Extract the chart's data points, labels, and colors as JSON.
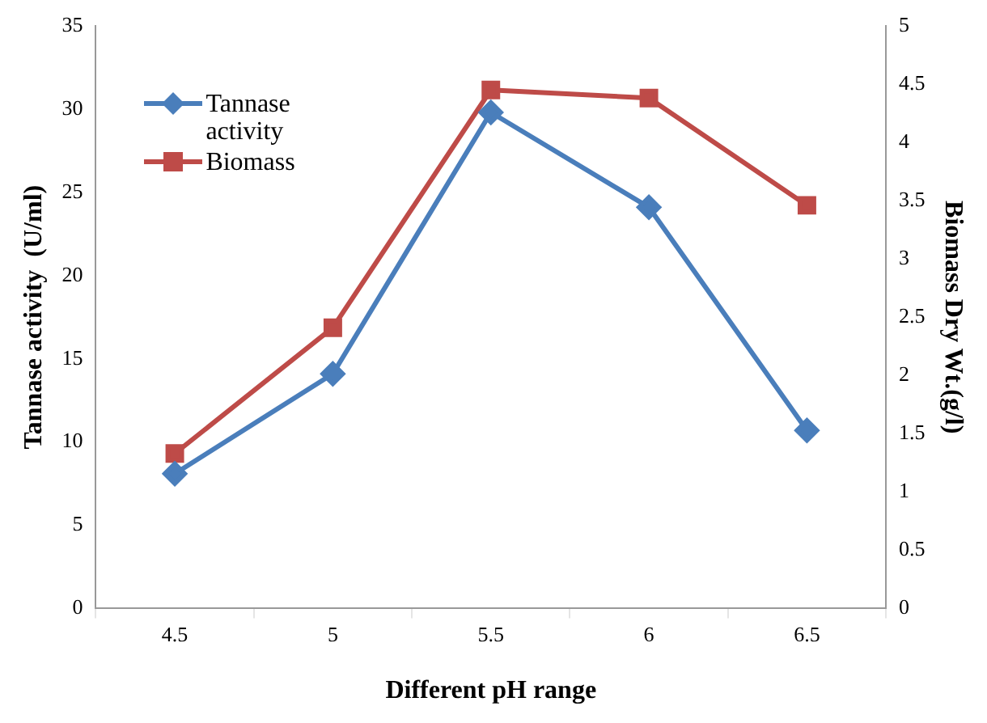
{
  "chart_data": {
    "type": "line",
    "xlabel": "Different pH range",
    "ylabel": "Tannase activity  (U/ml)",
    "y2label": "Biomass Dry Wt.(g/l)",
    "categories": [
      "4.5",
      "5",
      "5.5",
      "6",
      "6.5"
    ],
    "series": [
      {
        "name": "Tannase activity",
        "color": "#4a7ebb",
        "marker": "diamond",
        "values": [
          8.1,
          14.1,
          29.8,
          24.1,
          10.7
        ]
      },
      {
        "name": "Biomass",
        "color": "#be4b48",
        "marker": "square",
        "axis": "y2",
        "values": [
          1.33,
          2.41,
          4.45,
          4.38,
          3.46
        ]
      }
    ],
    "ylim": [
      0,
      35
    ],
    "yticks": [
      0,
      5,
      10,
      15,
      20,
      25,
      30,
      35
    ],
    "y2lim": [
      0,
      5
    ],
    "y2ticks": [
      0,
      0.5,
      1,
      1.5,
      2,
      2.5,
      3,
      3.5,
      4,
      4.5,
      5
    ],
    "grid": false,
    "legend": "top left"
  }
}
